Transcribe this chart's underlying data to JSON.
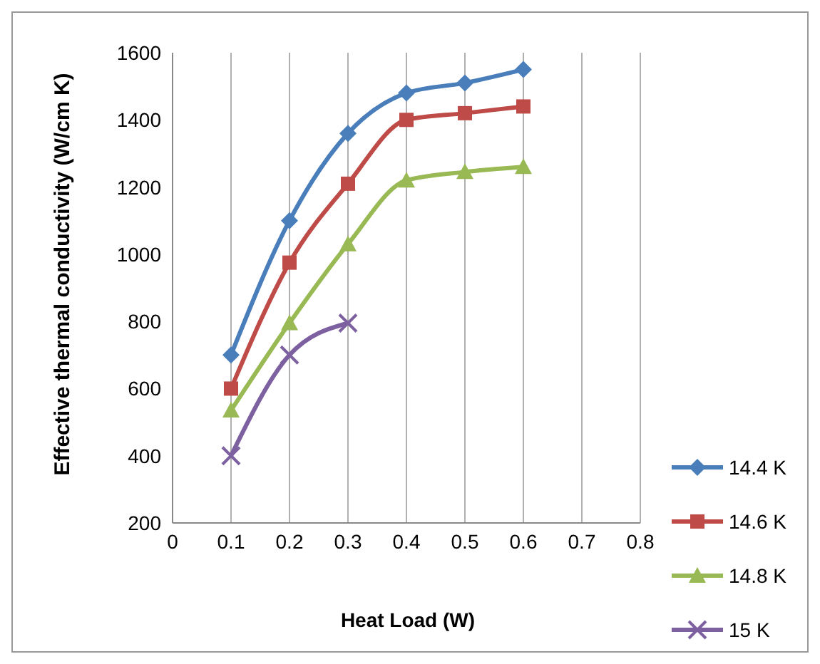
{
  "chart_data": {
    "type": "line",
    "xlabel": "Heat Load (W)",
    "ylabel": "Effective thermal conductivity (W/cm K)",
    "xlim": [
      0,
      0.8
    ],
    "xticks": [
      0,
      0.1,
      0.2,
      0.3,
      0.4,
      0.5,
      0.6,
      0.7,
      0.8
    ],
    "ylim": [
      200,
      1600
    ],
    "yticks": [
      200,
      400,
      600,
      800,
      1000,
      1200,
      1400,
      1600
    ],
    "grid": "x",
    "legend": "right",
    "series": [
      {
        "name": "14.4 K",
        "color": "#4a7ebb",
        "marker": "diamond",
        "x": [
          0.1,
          0.2,
          0.3,
          0.4,
          0.5,
          0.6
        ],
        "values": [
          700,
          1100,
          1360,
          1480,
          1510,
          1550
        ]
      },
      {
        "name": "14.6 K",
        "color": "#be4b48",
        "marker": "square",
        "x": [
          0.1,
          0.2,
          0.3,
          0.4,
          0.5,
          0.6
        ],
        "values": [
          600,
          975,
          1210,
          1400,
          1420,
          1440
        ]
      },
      {
        "name": "14.8 K",
        "color": "#98b954",
        "marker": "triangle",
        "x": [
          0.1,
          0.2,
          0.3,
          0.4,
          0.5,
          0.6
        ],
        "values": [
          535,
          795,
          1030,
          1220,
          1245,
          1260
        ]
      },
      {
        "name": "15 K",
        "color": "#7d60a0",
        "marker": "cross",
        "x": [
          0.1,
          0.2,
          0.3
        ],
        "values": [
          400,
          700,
          795
        ]
      }
    ]
  }
}
